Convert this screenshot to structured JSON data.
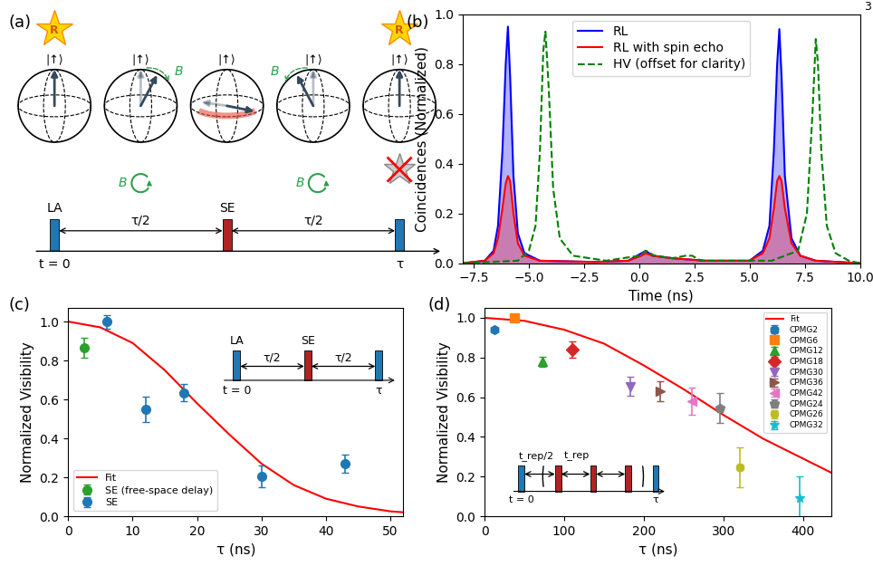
{
  "page_number": "3",
  "diagram": {
    "panel_label": "(a)",
    "readout_label": "R",
    "state_label": "|↑⟩",
    "field_label": "B",
    "pulses": [
      "LA",
      "SE"
    ],
    "interval_label": "τ/2",
    "start_label": "t = 0",
    "end_label": "τ"
  },
  "chart_data": [
    {
      "panel_label": "(b)",
      "type": "line",
      "x_label": "Time (ns)",
      "y_label": "Coincidences (Normalized)",
      "xlim": [
        -8,
        10
      ],
      "xticks": [
        {
          "value": -7.5,
          "label": "−7.5"
        },
        {
          "value": -5.0,
          "label": "−5.0"
        },
        {
          "value": -2.5,
          "label": "−2.5"
        },
        0.0,
        2.5,
        5.0,
        7.5,
        10.0
      ],
      "ylim": [
        0,
        1.0
      ],
      "yticks": [
        0.0,
        0.2,
        0.4,
        0.6,
        0.8,
        1.0
      ],
      "legend": "upper center",
      "series": [
        {
          "name": "RL",
          "type": "area",
          "color": "#0000ff",
          "line_style": "solid",
          "x": [
            -8,
            -7,
            -6.6,
            -6.4,
            -6.2,
            -6.05,
            -5.95,
            -5.85,
            -5.7,
            -5.5,
            -5.2,
            -4.5,
            -2,
            -0.5,
            0.1,
            0.3,
            0.6,
            1.5,
            3,
            5,
            5.6,
            5.9,
            6.1,
            6.25,
            6.35,
            6.45,
            6.6,
            6.9,
            7.3,
            8,
            10
          ],
          "values": [
            0.0,
            0.01,
            0.05,
            0.15,
            0.45,
            0.8,
            0.95,
            0.75,
            0.35,
            0.12,
            0.04,
            0.01,
            0.005,
            0.01,
            0.04,
            0.05,
            0.03,
            0.02,
            0.01,
            0.01,
            0.05,
            0.15,
            0.45,
            0.8,
            0.94,
            0.75,
            0.35,
            0.1,
            0.03,
            0.01,
            0.0
          ]
        },
        {
          "name": "RL with spin echo",
          "type": "area",
          "color": "#ff0000",
          "line_style": "solid",
          "x": [
            -8,
            -7,
            -6.6,
            -6.4,
            -6.2,
            -6.05,
            -5.95,
            -5.85,
            -5.7,
            -5.5,
            -5.2,
            -4.5,
            -2,
            -0.5,
            0.1,
            0.3,
            0.6,
            1.5,
            3,
            5,
            5.6,
            5.9,
            6.1,
            6.25,
            6.35,
            6.45,
            6.6,
            6.9,
            7.3,
            8,
            10
          ],
          "values": [
            0.0,
            0.01,
            0.04,
            0.1,
            0.22,
            0.32,
            0.35,
            0.33,
            0.2,
            0.08,
            0.03,
            0.01,
            0.005,
            0.01,
            0.03,
            0.04,
            0.03,
            0.02,
            0.01,
            0.01,
            0.04,
            0.1,
            0.22,
            0.33,
            0.35,
            0.33,
            0.22,
            0.08,
            0.03,
            0.01,
            0.0
          ]
        },
        {
          "name": "HV (offset for clarity)",
          "type": "line",
          "color": "#008000",
          "line_style": "dashed",
          "x": [
            -8,
            -5.5,
            -5.0,
            -4.7,
            -4.5,
            -4.35,
            -4.25,
            -4.1,
            -3.9,
            -3.6,
            -3,
            -1.5,
            0.0,
            0.3,
            0.7,
            1.5,
            2.1,
            2.4,
            2.8,
            4,
            6,
            7.2,
            7.6,
            7.85,
            8.0,
            8.1,
            8.25,
            8.5,
            8.9,
            9.5,
            10
          ],
          "values": [
            0.0,
            0.01,
            0.05,
            0.15,
            0.45,
            0.85,
            0.93,
            0.7,
            0.3,
            0.1,
            0.03,
            0.01,
            0.03,
            0.05,
            0.03,
            0.02,
            0.03,
            0.03,
            0.01,
            0.01,
            0.01,
            0.05,
            0.2,
            0.6,
            0.9,
            0.8,
            0.45,
            0.15,
            0.04,
            0.01,
            0.0
          ]
        }
      ]
    },
    {
      "panel_label": "(c)",
      "type": "scatter",
      "x_label": "τ (ns)",
      "y_label": "Normalized Visibility",
      "xlim": [
        0,
        52
      ],
      "xticks": [
        0,
        10,
        20,
        30,
        40,
        50
      ],
      "ylim": [
        0,
        1.07
      ],
      "yticks": [
        0.0,
        0.2,
        0.4,
        0.6,
        0.8,
        1.0
      ],
      "legend": "lower left",
      "inset": {
        "pulses": [
          "LA",
          "SE"
        ],
        "interval_label": "τ/2",
        "start_label": "t = 0",
        "end_label": "τ"
      },
      "series": [
        {
          "name": "Fit",
          "type": "line",
          "color": "#ff0000",
          "line_style": "solid",
          "x": [
            0,
            5,
            10,
            15,
            20,
            25,
            30,
            35,
            40,
            45,
            50,
            52
          ],
          "values": [
            1.0,
            0.97,
            0.89,
            0.75,
            0.58,
            0.42,
            0.27,
            0.16,
            0.09,
            0.05,
            0.025,
            0.02
          ]
        },
        {
          "name": "SE (free-space delay)",
          "type": "scatter",
          "color": "#2ca02c",
          "marker": "circle",
          "x": [
            2.5
          ],
          "values": [
            0.865
          ],
          "errors": [
            0.05
          ]
        },
        {
          "name": "SE",
          "type": "scatter",
          "color": "#1f77b4",
          "marker": "circle",
          "x": [
            6,
            12,
            18,
            30,
            43
          ],
          "values": [
            1.0,
            0.55,
            0.635,
            0.205,
            0.27
          ],
          "errors": [
            0.035,
            0.065,
            0.045,
            0.055,
            0.045
          ]
        }
      ]
    },
    {
      "panel_label": "(d)",
      "type": "scatter",
      "x_label": "τ (ns)",
      "y_label": "Normalized Visibility",
      "xlim": [
        0,
        435
      ],
      "xticks": [
        0,
        100,
        200,
        300,
        400
      ],
      "ylim": [
        0,
        1.05
      ],
      "yticks": [
        0.0,
        0.2,
        0.4,
        0.6,
        0.8,
        1.0
      ],
      "legend": "upper right",
      "inset": {
        "start_label": "t = 0",
        "end_label": "τ",
        "half_interval_label": "t_rep/2",
        "interval_label": "t_rep"
      },
      "series": [
        {
          "name": "Fit",
          "type": "line",
          "color": "#ff0000",
          "line_style": "solid",
          "x": [
            0,
            50,
            100,
            150,
            200,
            250,
            300,
            350,
            400,
            435
          ],
          "values": [
            1.0,
            0.985,
            0.94,
            0.87,
            0.76,
            0.64,
            0.51,
            0.39,
            0.29,
            0.22
          ]
        },
        {
          "name": "CPMG2",
          "type": "scatter",
          "color": "#1f77b4",
          "marker": "hexagon",
          "x": [
            12
          ],
          "values": [
            0.94
          ],
          "errors": [
            0.01
          ]
        },
        {
          "name": "CPMG6",
          "type": "scatter",
          "color": "#ff7f0e",
          "marker": "square",
          "x": [
            37
          ],
          "values": [
            1.0
          ],
          "errors": [
            0.01
          ]
        },
        {
          "name": "CPMG12",
          "type": "scatter",
          "color": "#2ca02c",
          "marker": "triangle_up",
          "x": [
            73
          ],
          "values": [
            0.78
          ],
          "errors": [
            0.025
          ]
        },
        {
          "name": "CPMG18",
          "type": "scatter",
          "color": "#d62728",
          "marker": "diamond",
          "x": [
            110
          ],
          "values": [
            0.84
          ],
          "errors": [
            0.04
          ]
        },
        {
          "name": "CPMG30",
          "type": "scatter",
          "color": "#9467bd",
          "marker": "triangle_down",
          "x": [
            183
          ],
          "values": [
            0.655
          ],
          "errors": [
            0.05
          ]
        },
        {
          "name": "CPMG36",
          "type": "scatter",
          "color": "#8c564b",
          "marker": "triangle_right",
          "x": [
            220
          ],
          "values": [
            0.63
          ],
          "errors": [
            0.05
          ]
        },
        {
          "name": "CPMG42",
          "type": "scatter",
          "color": "#e377c2",
          "marker": "triangle_left",
          "x": [
            260
          ],
          "values": [
            0.58
          ],
          "errors": [
            0.07
          ]
        },
        {
          "name": "CPMG24",
          "type": "scatter",
          "color": "#7f7f7f",
          "marker": "pentagon",
          "x": [
            296
          ],
          "values": [
            0.545
          ],
          "errors": [
            0.075
          ]
        },
        {
          "name": "CPMG26",
          "type": "scatter",
          "color": "#bcbd22",
          "marker": "octagon",
          "x": [
            320
          ],
          "values": [
            0.245
          ],
          "errors": [
            0.1
          ]
        },
        {
          "name": "CPMG32",
          "type": "scatter",
          "color": "#17becf",
          "marker": "star",
          "x": [
            395
          ],
          "values": [
            0.09
          ],
          "errors": [
            0.11
          ]
        }
      ]
    }
  ]
}
